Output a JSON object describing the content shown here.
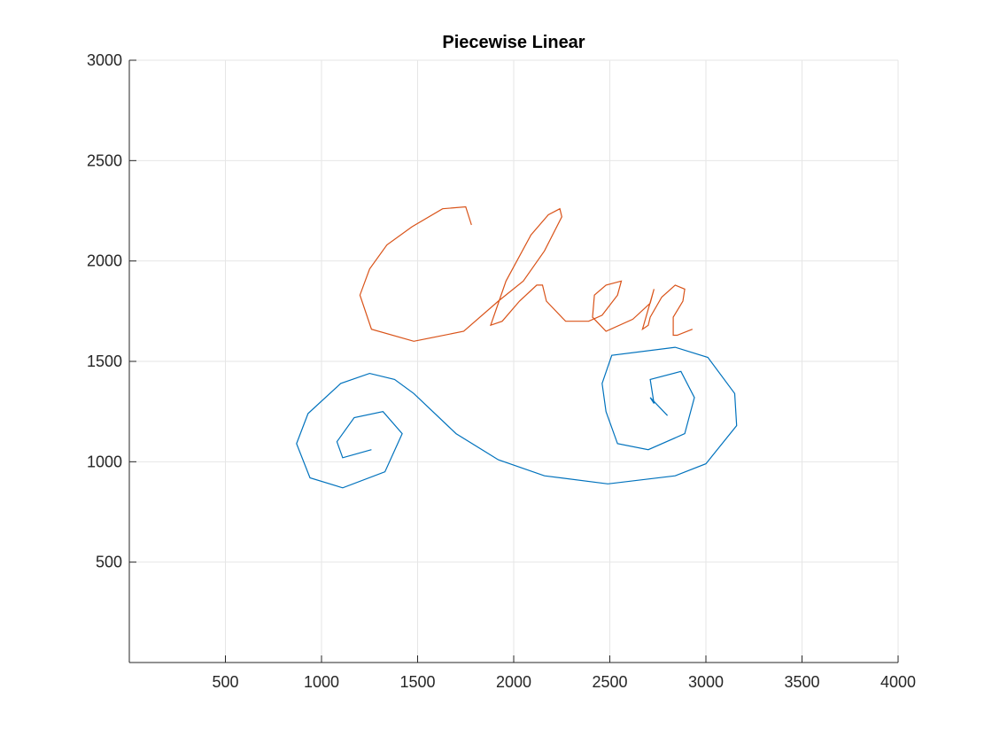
{
  "chart_data": {
    "type": "line",
    "title": "Piecewise Linear",
    "xlabel": "",
    "ylabel": "",
    "xlim": [
      0,
      4000
    ],
    "ylim": [
      0,
      3000
    ],
    "xticks": [
      500,
      1000,
      1500,
      2000,
      2500,
      3000,
      3500,
      4000
    ],
    "yticks": [
      500,
      1000,
      1500,
      2000,
      2500,
      3000
    ],
    "grid": true,
    "axis_color": "#262626",
    "grid_color": "#e6e6e6",
    "series": [
      {
        "color": "#0072BD",
        "x": [
          1260,
          1110,
          1080,
          1170,
          1320,
          1420,
          1330,
          1110,
          940,
          870,
          930,
          1100,
          1250,
          1380,
          1480,
          1700,
          1920,
          2160,
          2490,
          2840,
          3000,
          3160,
          3150,
          3010,
          2840,
          2510,
          2460,
          2480,
          2540,
          2700,
          2890,
          2940,
          2870,
          2710,
          2730,
          2710,
          2800
        ],
        "y": [
          1060,
          1020,
          1100,
          1220,
          1250,
          1140,
          950,
          870,
          920,
          1090,
          1240,
          1390,
          1440,
          1410,
          1340,
          1140,
          1010,
          930,
          890,
          930,
          990,
          1180,
          1340,
          1520,
          1570,
          1530,
          1390,
          1250,
          1090,
          1060,
          1140,
          1320,
          1450,
          1410,
          1290,
          1320,
          1230
        ]
      },
      {
        "color": "#D95319",
        "x": [
          1780,
          1750,
          1630,
          1470,
          1340,
          1250,
          1200,
          1260,
          1480,
          1740,
          1920,
          2050,
          2160,
          2250,
          2240,
          2180,
          2090,
          1960,
          1880,
          1940,
          2030,
          2120,
          2150,
          2170,
          2270,
          2390,
          2460,
          2540,
          2560,
          2480,
          2420,
          2410,
          2480,
          2620,
          2710,
          2730,
          2670,
          2700,
          2710,
          2770,
          2840,
          2890,
          2880,
          2830,
          2830,
          2850,
          2930
        ],
        "y": [
          2180,
          2270,
          2260,
          2170,
          2080,
          1960,
          1830,
          1660,
          1600,
          1650,
          1800,
          1900,
          2050,
          2220,
          2260,
          2230,
          2130,
          1900,
          1680,
          1700,
          1800,
          1880,
          1880,
          1800,
          1700,
          1700,
          1730,
          1830,
          1900,
          1880,
          1830,
          1720,
          1650,
          1710,
          1790,
          1860,
          1660,
          1680,
          1720,
          1820,
          1880,
          1860,
          1800,
          1720,
          1630,
          1630,
          1660
        ]
      }
    ]
  }
}
